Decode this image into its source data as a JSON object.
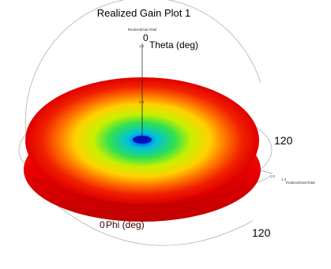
{
  "chart_data": {
    "type": "3d-radiation-pattern",
    "title": "Realized Gain Plot 1",
    "quantity": "RealizedGainTotal",
    "theta_axis_label": "Theta (deg)",
    "phi_axis_label": "Phi (deg)",
    "theta_tick": "0",
    "phi_tick": "0",
    "angle_labels": [
      "120",
      "120"
    ],
    "axis_ticks": [
      "1.0",
      "0.0",
      "-1.0",
      "1.4"
    ],
    "colormap": [
      "#e00000",
      "#ff6000",
      "#ffd000",
      "#c8f000",
      "#20e060",
      "#00c8c8",
      "#1040e0"
    ]
  }
}
